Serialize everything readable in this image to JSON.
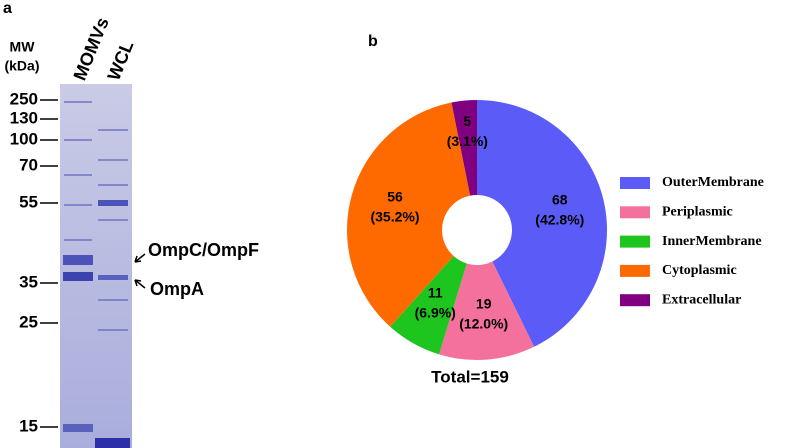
{
  "panel_a": {
    "label": "a",
    "mw_label": [
      "MW",
      "(kDa)"
    ],
    "lanes": [
      "MOMVs",
      "WCL"
    ],
    "markers": [
      "250",
      "130",
      "100",
      "70",
      "55",
      "35",
      "25",
      "15"
    ],
    "annotations": [
      "OmpC/OmpF",
      "OmpA"
    ]
  },
  "chart_data": {
    "type": "donut",
    "panel_label": "b",
    "categories": [
      "OuterMembrane",
      "Periplasmic",
      "InnerMembrane",
      "Cytoplasmic",
      "Extracellular"
    ],
    "values": [
      68,
      19,
      11,
      56,
      5
    ],
    "percent_labels": [
      "(42.8%)",
      "(12.0%)",
      "(6.9%)",
      "(35.2%)",
      "(3.1%)"
    ],
    "colors": [
      "#5b5bf7",
      "#f4719d",
      "#1fc51f",
      "#ff6a00",
      "#800080"
    ],
    "total_label": "Total=159",
    "legend": "right"
  }
}
